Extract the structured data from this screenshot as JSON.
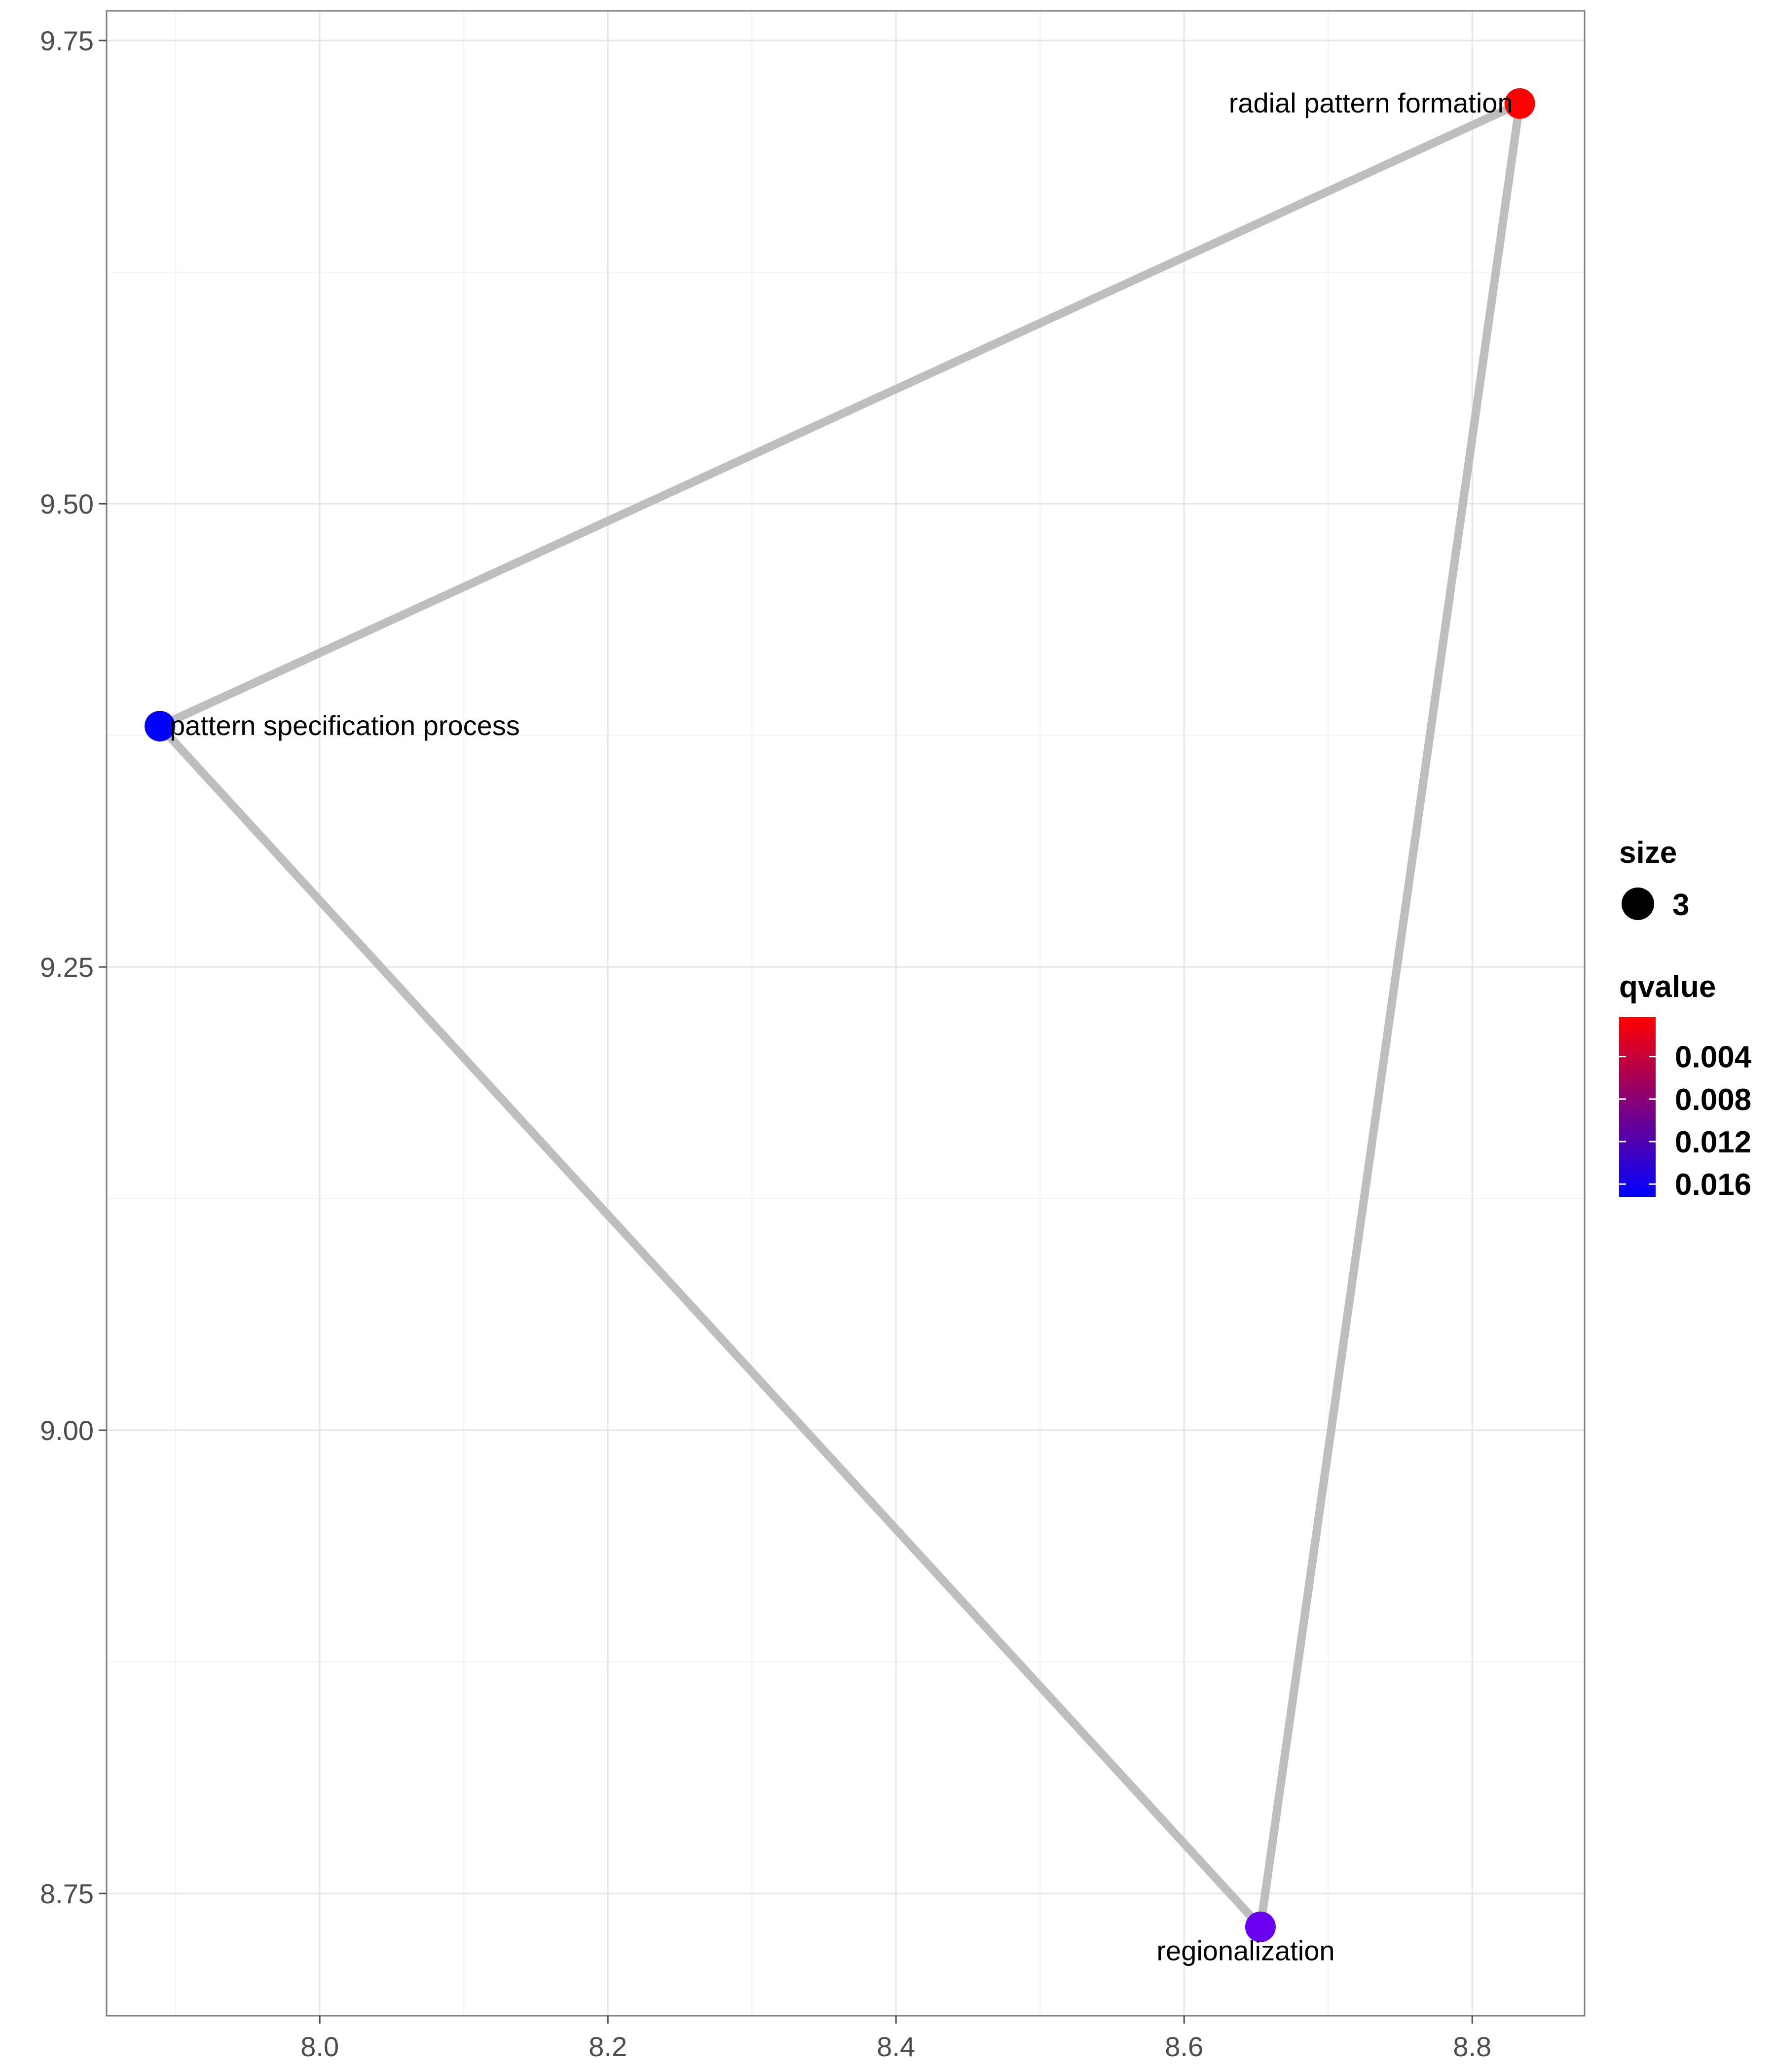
{
  "chart_data": {
    "type": "scatter",
    "title": "",
    "xlabel": "",
    "ylabel": "",
    "xlim": [
      7.852,
      8.878
    ],
    "ylim": [
      8.684,
      9.766
    ],
    "x_ticks": [
      8.0,
      8.2,
      8.4,
      8.6,
      8.8
    ],
    "x_tick_labels": [
      "8.0",
      "8.2",
      "8.4",
      "8.6",
      "8.8"
    ],
    "y_ticks": [
      8.75,
      9.0,
      9.25,
      9.5,
      9.75
    ],
    "y_tick_labels": [
      "8.75",
      "9.00",
      "9.25",
      "9.50",
      "9.75"
    ],
    "grid": true,
    "nodes": [
      {
        "label": "radial pattern formation",
        "x": 8.833,
        "y": 9.716,
        "qvalue": 0.001,
        "color": "#ff0000",
        "size": 3
      },
      {
        "label": "pattern specification process",
        "x": 7.889,
        "y": 9.38,
        "qvalue": 0.017,
        "color": "#0000ff",
        "size": 3
      },
      {
        "label": "regionalization",
        "x": 8.653,
        "y": 8.732,
        "qvalue": 0.015,
        "color": "#6a00f0",
        "size": 3
      }
    ],
    "edges": [
      [
        0,
        1
      ],
      [
        1,
        2
      ],
      [
        2,
        0
      ]
    ],
    "edge_color": "#bebebe",
    "legend": {
      "position": "right",
      "size_title": "size",
      "size_value": "3",
      "color_title": "qvalue",
      "color_low": "#ff0000",
      "color_high": "#0000ff",
      "color_range": [
        0.0003,
        0.0172
      ],
      "color_ticks": [
        0.004,
        0.008,
        0.012,
        0.016
      ],
      "color_tick_labels": [
        "0.004",
        "0.008",
        "0.012",
        "0.016"
      ]
    }
  }
}
